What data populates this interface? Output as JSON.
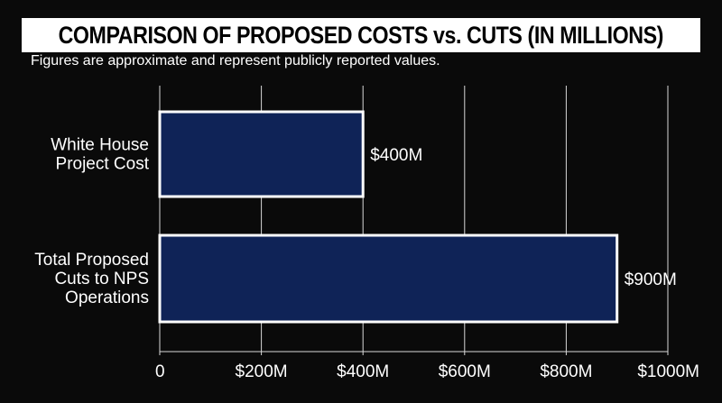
{
  "title": "COMPARISON OF PROPOSED COSTS vs. CUTS (IN MILLIONS)",
  "subtitle": "Figures are approximate and represent publicly reported values.",
  "colors": {
    "background": "#0a0a0a",
    "bar_fill": "#0f2357",
    "bar_stroke": "#ffffff",
    "grid": "#d8d8d8",
    "text": "#ffffff"
  },
  "chart_data": {
    "type": "bar",
    "orientation": "horizontal",
    "categories": [
      [
        "White House",
        "Project Cost"
      ],
      [
        "Total Proposed",
        "Cuts to NPS",
        "Operations"
      ]
    ],
    "values": [
      400,
      900
    ],
    "data_labels": [
      "$400M",
      "$900M"
    ],
    "xlim": [
      0,
      1000
    ],
    "xticks": [
      0,
      200,
      400,
      600,
      800,
      1000
    ],
    "xtick_labels": [
      "0",
      "$200M",
      "$400M",
      "$600M",
      "$800M",
      "$1000M"
    ],
    "xlabel": "",
    "ylabel": "",
    "grid": true,
    "legend": "none"
  }
}
